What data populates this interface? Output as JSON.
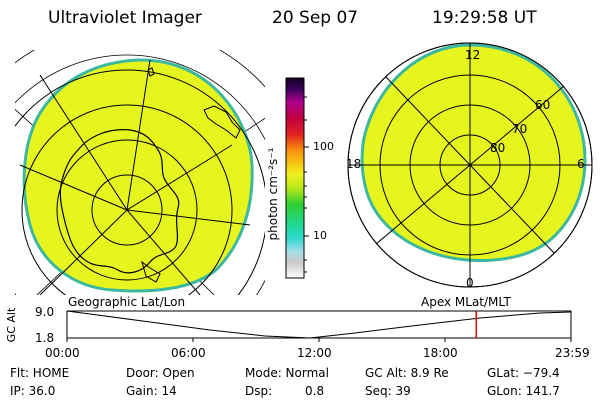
{
  "header": {
    "title": "Ultraviolet Imager",
    "date": "20 Sep 07",
    "time": "19:29:58 UT"
  },
  "colorbar": {
    "unit_label": "photon cm⁻²s⁻¹",
    "ticks": [
      "100",
      "10"
    ],
    "scale": "log"
  },
  "left_map": {
    "caption": "Geographic Lat/Lon"
  },
  "right_map": {
    "caption": "Apex MLat/MLT",
    "mlt_labels": [
      "12",
      "18",
      "6",
      "0"
    ],
    "mlat_labels": [
      "60",
      "70",
      "80"
    ]
  },
  "altitude_plot": {
    "ylabel": "GC Alt",
    "ytick_top": "9.0",
    "ytick_bottom": "1.8",
    "xticks": [
      "00:00",
      "06:00",
      "12:00",
      "18:00",
      "23:59"
    ],
    "current_time_fraction": 0.812
  },
  "status": {
    "flt": "Flt: HOME",
    "ip": "IP: 36.0",
    "door": "Door: Open",
    "gain": "Gain: 14",
    "mode": "Mode: Normal",
    "dsp_label": "Dsp:",
    "dsp_value": "0.8",
    "gc_alt": "GC Alt: 8.9 Re",
    "seq": "Seq: 39",
    "glat": "GLat: −79.4",
    "glon": "GLon: 141.7"
  },
  "colors": {
    "disk_fill": "#e6f51e",
    "disk_edge": "#3cb8a0",
    "marker": "#e00000"
  }
}
